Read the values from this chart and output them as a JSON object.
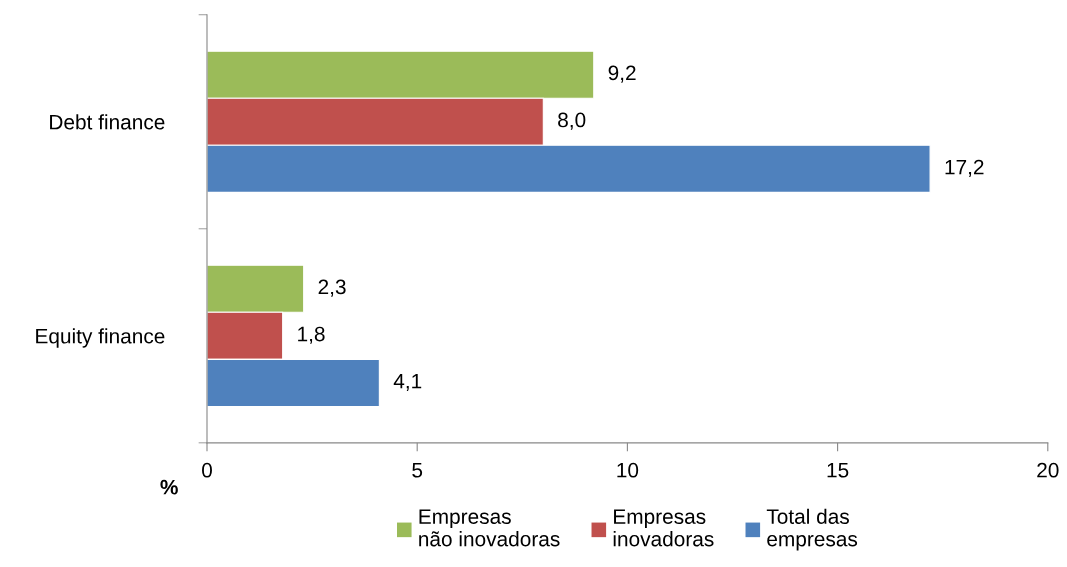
{
  "chart_data": {
    "type": "bar",
    "orientation": "horizontal",
    "xlabel": "%",
    "categories": [
      "Debt finance",
      "Equity finance"
    ],
    "series": [
      {
        "name": "Empresas\nnão inovadoras",
        "color": "#9bbb59",
        "values": [
          9.2,
          2.3
        ],
        "value_labels": [
          "9,2",
          "2,3"
        ]
      },
      {
        "name": "Empresas\ninovadoras",
        "color": "#c0504d",
        "values": [
          8.0,
          1.8
        ],
        "value_labels": [
          "8,0",
          "1,8"
        ]
      },
      {
        "name": "Total das\nempresas",
        "color": "#4f81bd",
        "values": [
          17.2,
          4.1
        ],
        "value_labels": [
          "17,2",
          "4,1"
        ]
      }
    ],
    "xlim": [
      0,
      20
    ],
    "xticks": [
      0,
      5,
      10,
      15,
      20
    ],
    "grid": false,
    "legend": "bottom"
  }
}
